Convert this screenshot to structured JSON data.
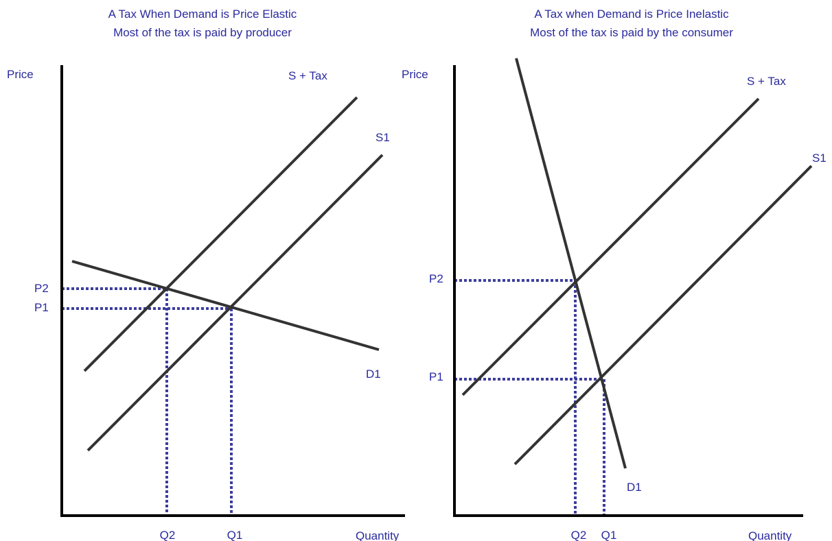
{
  "panels": [
    {
      "title": [
        "A Tax When Demand is Price Elastic",
        "Most of the tax is paid by producer"
      ],
      "y_axis": "Price",
      "x_axis": "Quantity",
      "curves": {
        "s_tax": "S + Tax",
        "s1": "S1",
        "d1": "D1"
      },
      "prices": [
        "P2",
        "P1"
      ],
      "quantities": [
        "Q2",
        "Q1"
      ]
    },
    {
      "title": [
        "A Tax when Demand is Price Inelastic",
        "Most of the tax is paid by the consumer"
      ],
      "y_axis": "Price",
      "x_axis": "Quantity",
      "curves": {
        "s_tax": "S + Tax",
        "s1": "S1",
        "d1": "D1"
      },
      "prices": [
        "P2",
        "P1"
      ],
      "quantities": [
        "Q2",
        "Q1"
      ]
    }
  ]
}
